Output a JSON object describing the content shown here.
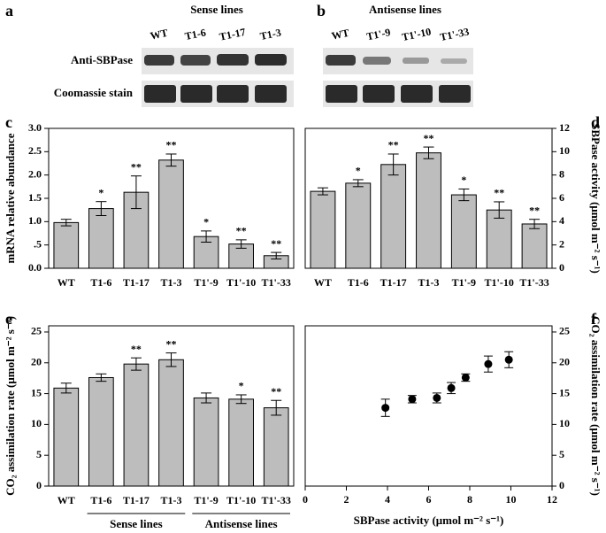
{
  "blots": [
    {
      "panel": "a",
      "title": "Sense lines",
      "lanes": [
        "WT",
        "T1-6",
        "T1-17",
        "T1-3"
      ]
    },
    {
      "panel": "b",
      "title": "Antisense lines",
      "lanes": [
        "WT",
        "T1'-9",
        "T1'-10",
        "T1'-33"
      ]
    }
  ],
  "blot_rows": [
    "Anti-SBPase",
    "Coomassie stain"
  ],
  "chart_data": [
    {
      "type": "bar",
      "panel": "c",
      "ylabel": "mRNA relative abundance",
      "y_axis_side": "left",
      "categories": [
        "WT",
        "T1-6",
        "T1-17",
        "T1-3",
        "T1'-9",
        "T1'-10",
        "T1'-33"
      ],
      "values": [
        0.98,
        1.28,
        1.63,
        2.32,
        0.68,
        0.52,
        0.27
      ],
      "errors": [
        0.07,
        0.15,
        0.35,
        0.13,
        0.12,
        0.09,
        0.07
      ],
      "annotations": [
        null,
        "*",
        "**",
        "**",
        "*",
        "**",
        "**"
      ],
      "color": "#bdbdbd",
      "ylim": [
        0,
        3
      ],
      "yticks": [
        {
          "value": 0,
          "label": "0.0"
        },
        {
          "value": 0.5,
          "label": ".5"
        },
        {
          "value": 1,
          "label": "1.0"
        },
        {
          "value": 1.5,
          "label": "1.5"
        },
        {
          "value": 2,
          "label": "2.0"
        },
        {
          "value": 2.5,
          "label": "2.5"
        },
        {
          "value": 3,
          "label": "3.0"
        }
      ]
    },
    {
      "type": "bar",
      "panel": "d",
      "ylabel": "SBPase activity (μmol m⁻² s⁻¹)",
      "y_axis_side": "right",
      "categories": [
        "WT",
        "T1-6",
        "T1-17",
        "T1-3",
        "T1'-9",
        "T1'-10",
        "T1'-33"
      ],
      "values": [
        6.6,
        7.3,
        8.9,
        9.9,
        6.3,
        5.0,
        3.8
      ],
      "errors": [
        0.3,
        0.3,
        0.9,
        0.5,
        0.5,
        0.7,
        0.4
      ],
      "annotations": [
        null,
        "*",
        "**",
        "**",
        "*",
        "**",
        "**"
      ],
      "color": "#bdbdbd",
      "ylim": [
        0,
        12
      ],
      "yticks": [
        0,
        2,
        4,
        6,
        8,
        10,
        12
      ]
    },
    {
      "type": "bar",
      "panel": "e",
      "ylabel": "CO₂ assimilation rate (μmol m⁻² s⁻¹)",
      "y_axis_side": "left",
      "categories": [
        "WT",
        "T1-6",
        "T1-17",
        "T1-3",
        "T1'-9",
        "T1'-10",
        "T1'-33"
      ],
      "values": [
        15.9,
        17.6,
        19.8,
        20.5,
        14.3,
        14.1,
        12.7
      ],
      "errors": [
        0.8,
        0.6,
        1.0,
        1.1,
        0.8,
        0.7,
        1.2
      ],
      "annotations": [
        null,
        null,
        "**",
        "**",
        null,
        "*",
        "**"
      ],
      "groups": [
        {
          "label": "Sense lines",
          "span": [
            1,
            3
          ]
        },
        {
          "label": "Antisense lines",
          "span": [
            4,
            6
          ]
        }
      ],
      "color": "#bdbdbd",
      "ylim": [
        0,
        26
      ],
      "yticks": [
        0,
        5,
        10,
        15,
        20,
        25
      ]
    },
    {
      "type": "scatter",
      "panel": "f",
      "xlabel": "SBPase activity (μmol m⁻² s⁻¹)",
      "ylabel": "CO₂ assimilation rate (μmol m⁻² s⁻¹)",
      "y_axis_side": "right",
      "x": [
        3.9,
        5.2,
        6.4,
        7.1,
        7.8,
        8.9,
        9.9
      ],
      "values": [
        12.7,
        14.1,
        14.3,
        15.9,
        17.6,
        19.8,
        20.5
      ],
      "errors": [
        1.4,
        0.6,
        0.8,
        0.9,
        0.6,
        1.3,
        1.3
      ],
      "color": "#000000",
      "xlim": [
        0,
        12
      ],
      "xticks": [
        0,
        2,
        4,
        6,
        8,
        10,
        12
      ],
      "ylim": [
        0,
        26
      ],
      "yticks": [
        0,
        5,
        10,
        15,
        20,
        25
      ]
    }
  ]
}
